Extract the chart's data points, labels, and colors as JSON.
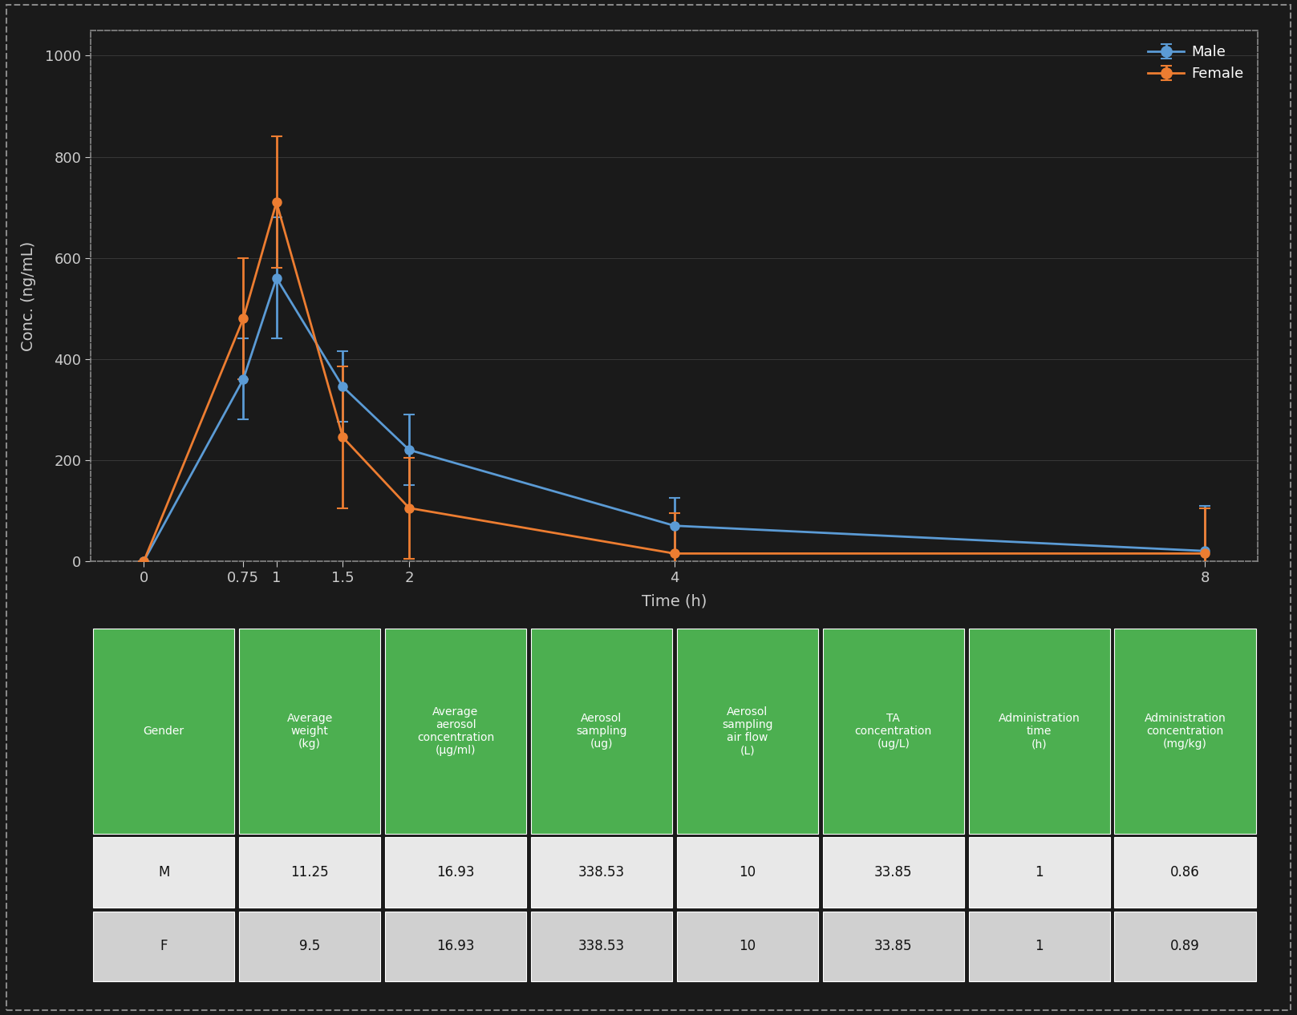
{
  "time": [
    0,
    0.75,
    1,
    1.5,
    2,
    4,
    8
  ],
  "male_conc": [
    0,
    360,
    560,
    345,
    220,
    70,
    20
  ],
  "male_err": [
    0,
    80,
    120,
    70,
    70,
    55,
    90
  ],
  "female_conc": [
    0,
    480,
    710,
    245,
    105,
    15,
    15
  ],
  "female_err": [
    0,
    120,
    130,
    140,
    100,
    80,
    90
  ],
  "male_color": "#5B9BD5",
  "female_color": "#ED7D31",
  "bg_color": "#1a1a1a",
  "ylabel": "Conc. (ng/mL)",
  "xlabel": "Time (h)",
  "ylim": [
    0,
    1050
  ],
  "yticks": [
    0,
    200,
    400,
    600,
    800,
    1000
  ],
  "xticks": [
    0,
    0.75,
    1,
    1.5,
    2,
    4,
    8
  ],
  "table_header_bg": "#4CAF50",
  "table_header_text": "#ffffff",
  "table_row_bg1": "#e8e8e8",
  "table_row_bg2": "#d0d0d0",
  "table_headers": [
    "Gender",
    "Average\nweight\n(kg)",
    "Average\naerosol\nconcentration\n(μg/ml)",
    "Aerosol\nsampling\n(ug)",
    "Aerosol\nsampling\nair flow\n(L)",
    "TA\nconcentration\n(ug/L)",
    "Administration\ntime\n(h)",
    "Administration\nconcentration\n(mg/kg)"
  ],
  "table_row1": [
    "M",
    "11.25",
    "16.93",
    "338.53",
    "10",
    "33.85",
    "1",
    "0.86"
  ],
  "table_row2": [
    "F",
    "9.5",
    "16.93",
    "338.53",
    "10",
    "33.85",
    "1",
    "0.89"
  ],
  "border_color": "#888888",
  "text_color": "#ffffff",
  "axis_text_color": "#cccccc",
  "legend_male": "Male",
  "legend_female": "Female",
  "marker_size": 8,
  "line_width": 2.0
}
